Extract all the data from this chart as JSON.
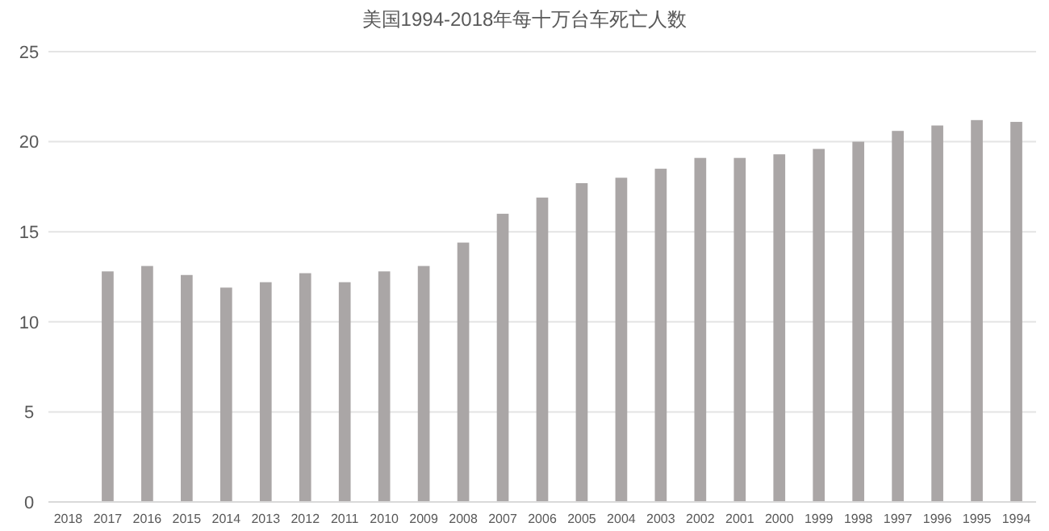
{
  "chart_data": {
    "type": "bar",
    "title": "美国1994-2018年每十万台车死亡人数",
    "categories": [
      "2018",
      "2017",
      "2016",
      "2015",
      "2014",
      "2013",
      "2012",
      "2011",
      "2010",
      "2009",
      "2008",
      "2007",
      "2006",
      "2005",
      "2004",
      "2003",
      "2002",
      "2001",
      "2000",
      "1999",
      "1998",
      "1997",
      "1996",
      "1995",
      "1994"
    ],
    "values": [
      null,
      12.8,
      13.1,
      12.6,
      11.9,
      12.2,
      12.7,
      12.2,
      12.8,
      13.1,
      14.4,
      16.0,
      16.9,
      17.7,
      18.0,
      18.5,
      19.1,
      19.1,
      19.3,
      19.6,
      20.0,
      20.6,
      20.9,
      21.2,
      21.1
    ],
    "color": "#aaa6a6",
    "ylim": [
      0,
      25
    ],
    "yticks": [
      0,
      5,
      10,
      15,
      20,
      25
    ],
    "grid": "y"
  }
}
